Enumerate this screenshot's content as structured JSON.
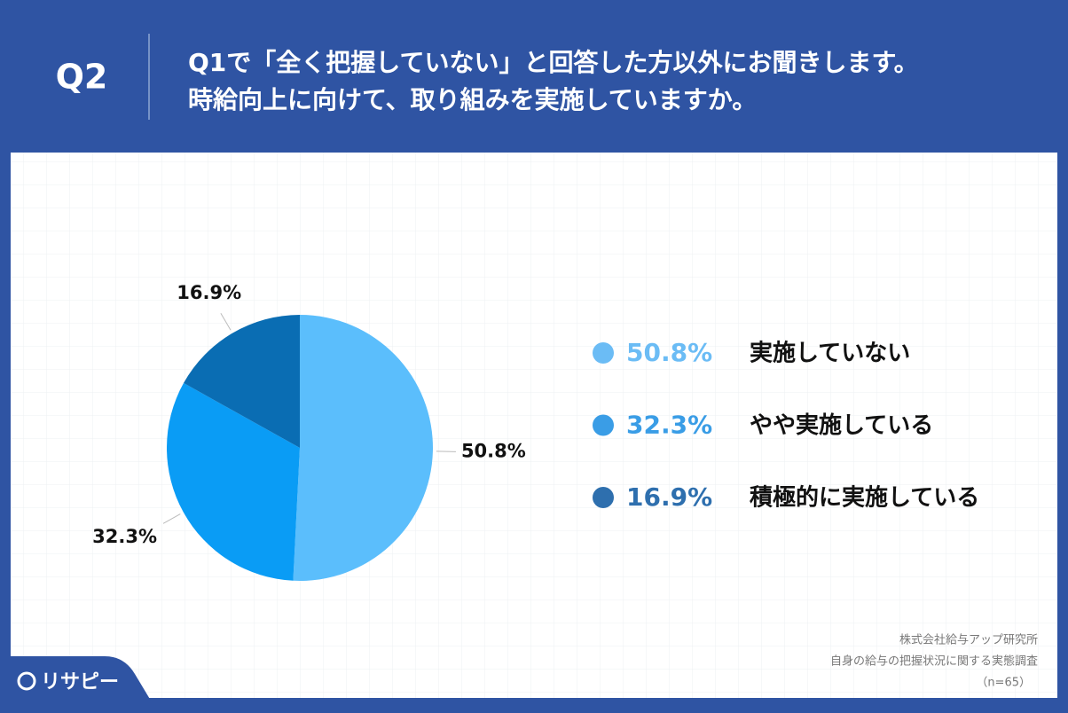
{
  "chart_data": {
    "type": "pie",
    "question_label": "Q2",
    "title_lines": [
      "Q1で「全く把握していない」と回答した方以外にお聞きします。",
      "時給向上に向けて、取り組みを実施していますか。"
    ],
    "categories": [
      "実施していない",
      "やや実施している",
      "積極的に実施している"
    ],
    "values": [
      50.8,
      32.3,
      16.9
    ],
    "value_labels": [
      "50.8%",
      "32.3%",
      "16.9%"
    ],
    "colors": [
      "#5bbefc",
      "#0a9cf5",
      "#0a6db3"
    ],
    "legend_colors": [
      "#6bbcf5",
      "#3a9de6",
      "#2e6fae"
    ],
    "source_lines": [
      "株式会社給与アップ研究所",
      "自身の給与の把握状況に関する実態調査",
      "（n=65）"
    ],
    "brand": "リサピー"
  }
}
